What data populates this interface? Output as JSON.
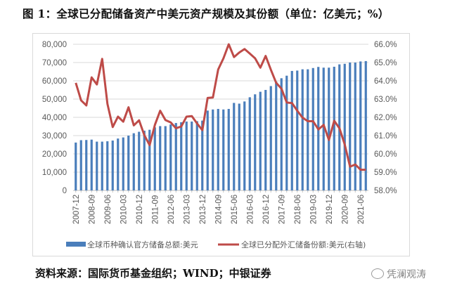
{
  "title": "图 1：全球已分配储备资产中美元资产规模及其份额（单位：亿美元；%）",
  "source": "资料来源：国际货币基金组织；WIND；中银证券",
  "watermark": "凭澜观涛",
  "chart_data": {
    "type": "bar+line",
    "x": [
      "2007-12",
      "2008-03",
      "2008-06",
      "2008-09",
      "2008-12",
      "2009-03",
      "2009-06",
      "2009-09",
      "2009-12",
      "2010-03",
      "2010-06",
      "2010-09",
      "2010-12",
      "2011-03",
      "2011-06",
      "2011-09",
      "2011-12",
      "2012-03",
      "2012-06",
      "2012-09",
      "2012-12",
      "2013-03",
      "2013-06",
      "2013-09",
      "2013-12",
      "2014-03",
      "2014-06",
      "2014-09",
      "2014-12",
      "2015-03",
      "2015-06",
      "2015-09",
      "2015-12",
      "2016-03",
      "2016-06",
      "2016-09",
      "2016-12",
      "2017-03",
      "2017-06",
      "2017-09",
      "2017-12",
      "2018-03",
      "2018-06",
      "2018-09",
      "2018-12",
      "2019-03",
      "2019-06",
      "2019-09",
      "2019-12",
      "2020-03",
      "2020-06",
      "2020-09",
      "2020-12",
      "2021-03",
      "2021-06",
      "2021-09"
    ],
    "x_tick_labels": [
      "2007-12",
      "2008-09",
      "2009-06",
      "2010-03",
      "2010-12",
      "2011-09",
      "2012-06",
      "2013-03",
      "2013-12",
      "2014-09",
      "2015-06",
      "2016-03",
      "2016-12",
      "2017-09",
      "2018-06",
      "2019-03",
      "2019-12",
      "2020-09",
      "2021-06"
    ],
    "series": [
      {
        "name": "全球币种确认官方储备总额:美元",
        "type": "bar",
        "axis": "left",
        "color": "#4a7ebb",
        "values": [
          26200,
          27500,
          27600,
          27800,
          26700,
          26700,
          26900,
          27300,
          28400,
          29000,
          30000,
          31300,
          32100,
          32700,
          33200,
          34500,
          35200,
          35200,
          36100,
          36900,
          37300,
          37700,
          37700,
          37900,
          38200,
          43700,
          44300,
          44600,
          44300,
          44600,
          47900,
          47500,
          48700,
          51000,
          52600,
          54000,
          55000,
          57100,
          59600,
          61400,
          62800,
          65400,
          65600,
          66300,
          66300,
          67000,
          67600,
          67200,
          67200,
          67700,
          69000,
          69300,
          70000,
          70000,
          70600,
          70800
        ]
      },
      {
        "name": "全球已分配外汇储备份额:美元(右轴)",
        "type": "line",
        "axis": "right",
        "color": "#be4b48",
        "values": [
          63.89,
          62.93,
          62.65,
          64.19,
          63.8,
          65.2,
          62.74,
          61.47,
          62.04,
          61.76,
          62.55,
          61.56,
          61.84,
          61.02,
          60.48,
          61.59,
          62.36,
          61.85,
          61.72,
          61.4,
          61.5,
          62.04,
          62.07,
          61.66,
          61.3,
          63.06,
          63.09,
          64.62,
          65.23,
          66.0,
          65.3,
          65.55,
          65.74,
          65.49,
          65.23,
          64.72,
          65.36,
          64.6,
          63.89,
          63.57,
          62.81,
          62.78,
          62.36,
          61.98,
          61.79,
          61.79,
          61.34,
          61.59,
          60.76,
          61.81,
          61.4,
          60.51,
          59.3,
          59.42,
          59.13,
          59.13
        ]
      }
    ],
    "left_axis": {
      "ylim": [
        0,
        80000
      ],
      "ticks": [
        "0",
        "10,000",
        "20,000",
        "30,000",
        "40,000",
        "50,000",
        "60,000",
        "70,000",
        "80,000"
      ]
    },
    "right_axis": {
      "ylim": [
        58,
        66
      ],
      "ticks": [
        "58.0%",
        "59.0%",
        "60.0%",
        "61.0%",
        "62.0%",
        "63.0%",
        "64.0%",
        "65.0%",
        "66.0%"
      ]
    },
    "grid": true,
    "legend": "bottom"
  }
}
